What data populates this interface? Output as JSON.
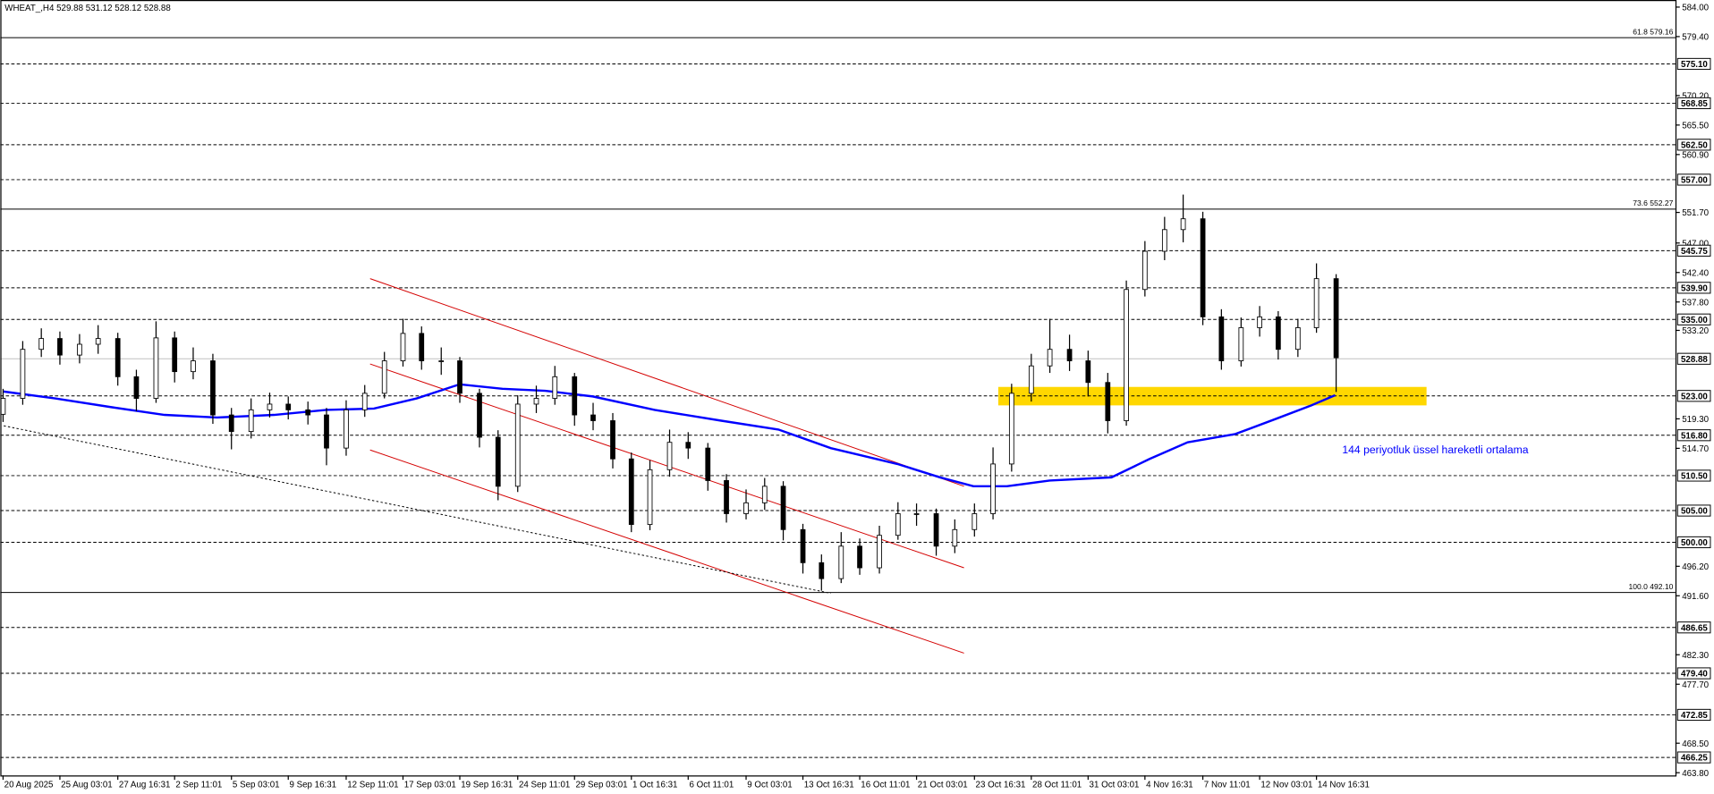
{
  "chart_data": {
    "type": "candlestick",
    "title": "WHEAT_,H4 529.88 531.12 528.12 528.88",
    "annotation": "144 periyotluk üssel hareketli ortalama",
    "xlim": [
      -0.5,
      351.5
    ],
    "ylim": [
      463.3,
      585.05
    ],
    "xticks": [
      {
        "value": 0,
        "label": "20 Aug 2025"
      },
      {
        "value": 12,
        "label": "25 Aug 03:01"
      },
      {
        "value": 24,
        "label": "27 Aug 16:31"
      },
      {
        "value": 36,
        "label": "2 Sep 11:01"
      },
      {
        "value": 48,
        "label": "5 Sep 03:01"
      },
      {
        "value": 60,
        "label": "9 Sep 16:31"
      },
      {
        "value": 72,
        "label": "12 Sep 11:01"
      },
      {
        "value": 84,
        "label": "17 Sep 03:01"
      },
      {
        "value": 96,
        "label": "19 Sep 16:31"
      },
      {
        "value": 108,
        "label": "24 Sep 11:01"
      },
      {
        "value": 120,
        "label": "29 Sep 03:01"
      },
      {
        "value": 132,
        "label": "1 Oct 16:31"
      },
      {
        "value": 144,
        "label": "6 Oct 11:01"
      },
      {
        "value": 156,
        "label": "9 Oct 03:01"
      },
      {
        "value": 168,
        "label": "13 Oct 16:31"
      },
      {
        "value": 180,
        "label": "16 Oct 11:01"
      },
      {
        "value": 192,
        "label": "21 Oct 03:01"
      },
      {
        "value": 204,
        "label": "23 Oct 16:31"
      },
      {
        "value": 216,
        "label": "28 Oct 11:01"
      },
      {
        "value": 228,
        "label": "31 Oct 03:01"
      },
      {
        "value": 240,
        "label": "4 Nov 16:31"
      },
      {
        "value": 252,
        "label": "7 Nov 11:01"
      },
      {
        "value": 264,
        "label": "12 Nov 03:01"
      },
      {
        "value": 276,
        "label": "14 Nov 16:31"
      }
    ],
    "yticks": [
      {
        "value": 584,
        "label": "584.00"
      },
      {
        "value": 579.4,
        "label": "579.40"
      },
      {
        "value": 570.2,
        "label": "570.20"
      },
      {
        "value": 565.5,
        "label": "565.50"
      },
      {
        "value": 560.9,
        "label": "560.90"
      },
      {
        "value": 551.7,
        "label": "551.70"
      },
      {
        "value": 547,
        "label": "547.00"
      },
      {
        "value": 542.4,
        "label": "542.40"
      },
      {
        "value": 537.8,
        "label": "537.80"
      },
      {
        "value": 533.2,
        "label": "533.20"
      },
      {
        "value": 519.3,
        "label": "519.30"
      },
      {
        "value": 514.7,
        "label": "514.70"
      },
      {
        "value": 496.2,
        "label": "496.20"
      },
      {
        "value": 491.6,
        "label": "491.60"
      },
      {
        "value": 482.3,
        "label": "482.30"
      },
      {
        "value": 477.7,
        "label": "477.70"
      },
      {
        "value": 468.5,
        "label": "468.50"
      },
      {
        "value": 463.8,
        "label": "463.80"
      }
    ],
    "levels": [
      {
        "value": 575.1,
        "label": "575.10"
      },
      {
        "value": 568.85,
        "label": "568.85"
      },
      {
        "value": 562.5,
        "label": "562.50"
      },
      {
        "value": 557,
        "label": "557.00"
      },
      {
        "value": 545.75,
        "label": "545.75"
      },
      {
        "value": 539.9,
        "label": "539.90"
      },
      {
        "value": 535,
        "label": "535.00"
      },
      {
        "value": 523,
        "label": "523.00"
      },
      {
        "value": 516.8,
        "label": "516.80"
      },
      {
        "value": 510.5,
        "label": "510.50"
      },
      {
        "value": 505,
        "label": "505.00"
      },
      {
        "value": 500,
        "label": "500.00"
      },
      {
        "value": 486.65,
        "label": "486.65"
      },
      {
        "value": 479.4,
        "label": "479.40"
      },
      {
        "value": 472.85,
        "label": "472.85"
      },
      {
        "value": 466.25,
        "label": "466.25"
      }
    ],
    "fib_levels": [
      {
        "value": 579.16,
        "label": "61.8 579.16"
      },
      {
        "value": 552.27,
        "label": "73.6 552.27"
      },
      {
        "value": 492.1,
        "label": "100.0 492.10"
      }
    ],
    "last_price": 528.88,
    "up_color": "#ffffff",
    "down_color": "#000000",
    "x": [
      0,
      4,
      8,
      12,
      16,
      20,
      24,
      28,
      32,
      36,
      40,
      44,
      48,
      52,
      56,
      60,
      64,
      68,
      72,
      76,
      80,
      84,
      88,
      92,
      96,
      100,
      104,
      108,
      112,
      116,
      120,
      124,
      128,
      132,
      136,
      140,
      144,
      148,
      152,
      156,
      160,
      164,
      168,
      172,
      176,
      180,
      184,
      188,
      192,
      196,
      200,
      204,
      208,
      212,
      216,
      220,
      224,
      228,
      232,
      236,
      240,
      244,
      248,
      252,
      256,
      260,
      264,
      268,
      272,
      276,
      280
    ],
    "open": [
      520.0,
      522.5,
      530.2,
      531.9,
      529.3,
      531.0,
      531.9,
      525.9,
      522.5,
      532.0,
      526.7,
      528.4,
      519.9,
      517.3,
      520.7,
      521.6,
      520.7,
      519.9,
      514.7,
      520.7,
      523.3,
      528.4,
      532.7,
      528.4,
      528.4,
      523.3,
      516.4,
      508.7,
      521.6,
      522.5,
      525.9,
      519.9,
      519.0,
      513.0,
      502.7,
      511.3,
      515.6,
      514.7,
      509.6,
      504.4,
      506.1,
      508.7,
      501.9,
      496.7,
      494.2,
      499.3,
      495.9,
      501.0,
      504.4,
      504.4,
      499.3,
      501.9,
      504.4,
      512.2,
      523.3,
      527.6,
      530.2,
      528.4,
      525.0,
      519.0,
      539.6,
      545.6,
      549.0,
      550.7,
      535.3,
      528.4,
      533.6,
      535.3,
      530.2,
      533.6,
      541.3
    ],
    "high": [
      524.0,
      531.5,
      533.5,
      533.0,
      532.6,
      534.0,
      532.8,
      527.0,
      534.6,
      533.0,
      530.5,
      529.5,
      521.0,
      522.5,
      523.4,
      522.8,
      522.0,
      521.0,
      522.2,
      524.6,
      529.8,
      535.0,
      533.8,
      530.5,
      529.0,
      524.0,
      517.5,
      523.0,
      524.5,
      527.6,
      526.5,
      521.8,
      520.2,
      514.0,
      512.8,
      517.6,
      517.2,
      515.5,
      510.6,
      508.2,
      510.0,
      509.5,
      502.8,
      498.0,
      501.5,
      500.5,
      502.5,
      506.2,
      506.0,
      505.2,
      503.5,
      506.0,
      514.8,
      524.8,
      529.5,
      535.0,
      532.5,
      530.0,
      526.5,
      541.0,
      547.2,
      551.0,
      554.5,
      551.8,
      536.5,
      535.2,
      537.0,
      536.2,
      535.0,
      543.7,
      542.0
    ],
    "low": [
      518.8,
      521.5,
      529.0,
      527.8,
      528.0,
      529.5,
      524.5,
      520.5,
      521.8,
      525.0,
      525.5,
      518.5,
      514.5,
      516.2,
      519.5,
      519.2,
      518.4,
      512.0,
      513.5,
      519.6,
      522.5,
      527.5,
      527.0,
      526.2,
      521.8,
      514.8,
      506.5,
      507.8,
      520.2,
      521.5,
      518.2,
      517.5,
      511.5,
      501.5,
      501.8,
      510.2,
      513.0,
      508.0,
      503.0,
      503.5,
      505.0,
      500.2,
      495.0,
      492.3,
      493.5,
      494.8,
      495.0,
      500.3,
      502.5,
      497.8,
      498.2,
      500.8,
      503.5,
      511.0,
      522.0,
      526.5,
      526.8,
      522.8,
      517.0,
      518.2,
      538.5,
      544.2,
      547.0,
      534.0,
      527.0,
      527.5,
      532.2,
      528.6,
      529.0,
      532.8,
      523.5
    ],
    "close": [
      522.5,
      530.2,
      531.9,
      529.3,
      531.0,
      531.9,
      525.9,
      522.5,
      532.0,
      526.7,
      528.4,
      519.9,
      517.3,
      520.7,
      521.6,
      520.7,
      519.9,
      514.7,
      520.7,
      523.3,
      528.4,
      532.7,
      528.4,
      528.4,
      523.3,
      516.4,
      508.7,
      521.6,
      522.5,
      525.9,
      519.9,
      519.0,
      513.0,
      502.7,
      511.3,
      515.6,
      514.7,
      509.6,
      504.4,
      506.1,
      508.7,
      501.9,
      496.7,
      494.2,
      499.3,
      495.9,
      501.0,
      504.4,
      504.4,
      499.3,
      501.9,
      504.4,
      512.2,
      523.3,
      527.6,
      530.2,
      528.4,
      525.0,
      519.0,
      539.6,
      545.6,
      549.0,
      550.7,
      535.3,
      528.4,
      533.6,
      535.3,
      530.2,
      533.6,
      541.3,
      528.88
    ],
    "ema": {
      "color": "#0000ff",
      "x": [
        0,
        11,
        23,
        34,
        45,
        57,
        68,
        78,
        87,
        96,
        105,
        114,
        124,
        137,
        151,
        163,
        174,
        188,
        197,
        204,
        211,
        220,
        233,
        241,
        249,
        259,
        268,
        275,
        280
      ],
      "values": [
        523.6,
        522.5,
        521.1,
        519.9,
        519.5,
        519.9,
        520.7,
        520.9,
        522.5,
        524.7,
        524.0,
        523.7,
        522.8,
        520.7,
        519.0,
        517.6,
        514.7,
        512.2,
        510.1,
        508.7,
        508.7,
        509.6,
        510.1,
        513.0,
        515.6,
        516.9,
        519.4,
        521.4,
        523.0
      ]
    },
    "trendlines": [
      {
        "x": [
          77.2,
          202
        ],
        "y": [
          541.3,
          508.7
        ],
        "color": "#d40000"
      },
      {
        "x": [
          77.2,
          202
        ],
        "y": [
          527.9,
          495.9
        ],
        "color": "#d40000"
      },
      {
        "x": [
          77.2,
          202
        ],
        "y": [
          514.4,
          482.5
        ],
        "color": "#d40000"
      },
      {
        "x": [
          0.2,
          174
        ],
        "y": [
          518.2,
          491.9
        ],
        "color": "#000000",
        "dashed": true
      }
    ],
    "zone": {
      "x": [
        209.2,
        299.2
      ],
      "y": [
        521.4,
        524.3
      ],
      "color": "#ffd700"
    }
  }
}
